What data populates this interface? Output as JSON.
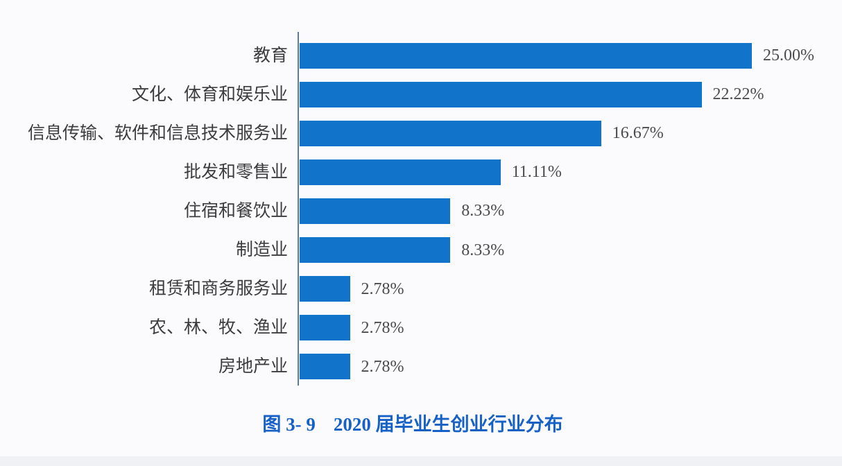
{
  "page": {
    "background": "#fbfbfe"
  },
  "chart_data": {
    "type": "bar",
    "orientation": "horizontal",
    "title": "图 3- 9　2020 届毕业生创业行业分布",
    "categories": [
      "教育",
      "文化、体育和娱乐业",
      "信息传输、软件和信息技术服务业",
      "批发和零售业",
      "住宿和餐饮业",
      "制造业",
      "租赁和商务服务业",
      "农、林、牧、渔业",
      "房地产业"
    ],
    "values": [
      25.0,
      22.22,
      16.67,
      11.11,
      8.33,
      8.33,
      2.78,
      2.78,
      2.78
    ],
    "value_labels": [
      "25.00%",
      "22.22%",
      "16.67%",
      "11.11%",
      "8.33%",
      "8.33%",
      "2.78%",
      "2.78%",
      "2.78%"
    ],
    "xlabel": "",
    "ylabel": "",
    "xlim": [
      0,
      25
    ],
    "grid": false,
    "legend": false,
    "data_labels": "outside-end",
    "colors": {
      "bar": "#1173C9",
      "axis": "#5B7AA0",
      "category_text": "#3C3C3C",
      "value_text": "#4B4B4B",
      "title": "#1761C6"
    }
  },
  "caption": {
    "figure_label": "图 3- 9",
    "title_text": "2020 届毕业生创业行业分布"
  }
}
